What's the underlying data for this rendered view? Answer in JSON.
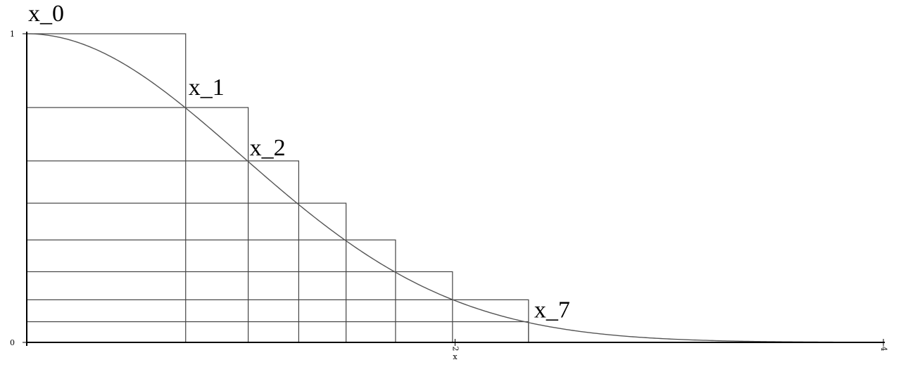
{
  "chart_data": {
    "type": "line",
    "xlabel": "x",
    "ylabel": "",
    "xlim": [
      0,
      4
    ],
    "ylim": [
      0,
      1
    ],
    "x_ticks": [
      {
        "value": 2,
        "label": "2"
      },
      {
        "value": 4,
        "label": "4"
      }
    ],
    "y_ticks": [
      {
        "value": 0,
        "label": "0"
      },
      {
        "value": 1,
        "label": "1"
      }
    ],
    "curve": {
      "function": "exp(-x^2/2)",
      "x_range": [
        0,
        4
      ]
    },
    "layers": [
      {
        "x": 0.742,
        "y": 1.0
      },
      {
        "x": 1.034,
        "y": 0.761
      },
      {
        "x": 1.27,
        "y": 0.588
      },
      {
        "x": 1.491,
        "y": 0.451
      },
      {
        "x": 1.722,
        "y": 0.332
      },
      {
        "x": 1.988,
        "y": 0.229
      },
      {
        "x": 2.343,
        "y": 0.138
      },
      {
        "x": 2.343,
        "y": 0.067
      }
    ],
    "annotations": [
      {
        "text": "x_0",
        "x": 0.0,
        "y": 1.0
      },
      {
        "text": "x_1",
        "x": 0.742,
        "y": 0.761
      },
      {
        "text": "x_2",
        "x": 1.034,
        "y": 0.588
      },
      {
        "text": "x_7",
        "x": 2.343,
        "y": 0.067
      }
    ]
  },
  "colors": {
    "axis": "#000000",
    "curve": "#555555",
    "rects": "#444444",
    "background": "#ffffff"
  }
}
